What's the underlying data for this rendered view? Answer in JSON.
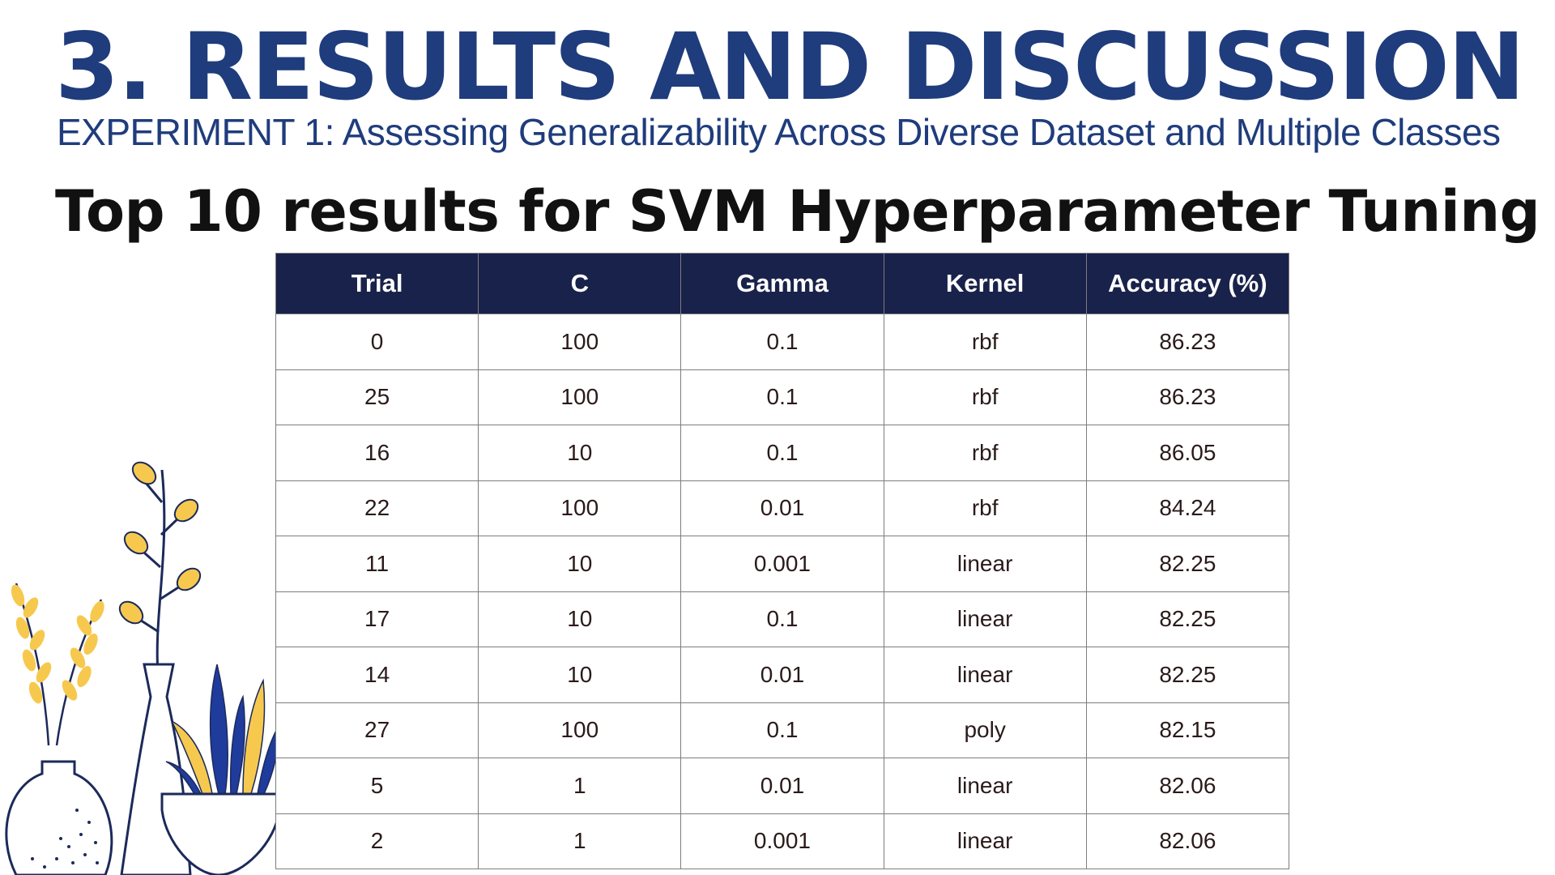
{
  "slide": {
    "title": "3. RESULTS AND DISCUSSION",
    "subtitle": "EXPERIMENT 1: Assessing Generalizability Across Diverse Dataset and Multiple Classes",
    "heading": "Top 10 results for SVM Hyperparameter Tuning"
  },
  "colors": {
    "title": "#1f3c7c",
    "header_bg": "#19224a",
    "header_text": "#ffffff",
    "border": "#7d7d7d",
    "decor_yellow": "#f6c94e",
    "decor_blue": "#1f3c9c",
    "decor_outline": "#1c2a5a"
  },
  "decoration": {
    "icon": "potted-plants-illustration-icon"
  },
  "table": {
    "headers": [
      "Trial",
      "C",
      "Gamma",
      "Kernel",
      "Accuracy (%)"
    ],
    "rows": [
      [
        "0",
        "100",
        "0.1",
        "rbf",
        "86.23"
      ],
      [
        "25",
        "100",
        "0.1",
        "rbf",
        "86.23"
      ],
      [
        "16",
        "10",
        "0.1",
        "rbf",
        "86.05"
      ],
      [
        "22",
        "100",
        "0.01",
        "rbf",
        "84.24"
      ],
      [
        "11",
        "10",
        "0.001",
        "linear",
        "82.25"
      ],
      [
        "17",
        "10",
        "0.1",
        "linear",
        "82.25"
      ],
      [
        "14",
        "10",
        "0.01",
        "linear",
        "82.25"
      ],
      [
        "27",
        "100",
        "0.1",
        "poly",
        "82.15"
      ],
      [
        "5",
        "1",
        "0.01",
        "linear",
        "82.06"
      ],
      [
        "2",
        "1",
        "0.001",
        "linear",
        "82.06"
      ]
    ]
  }
}
